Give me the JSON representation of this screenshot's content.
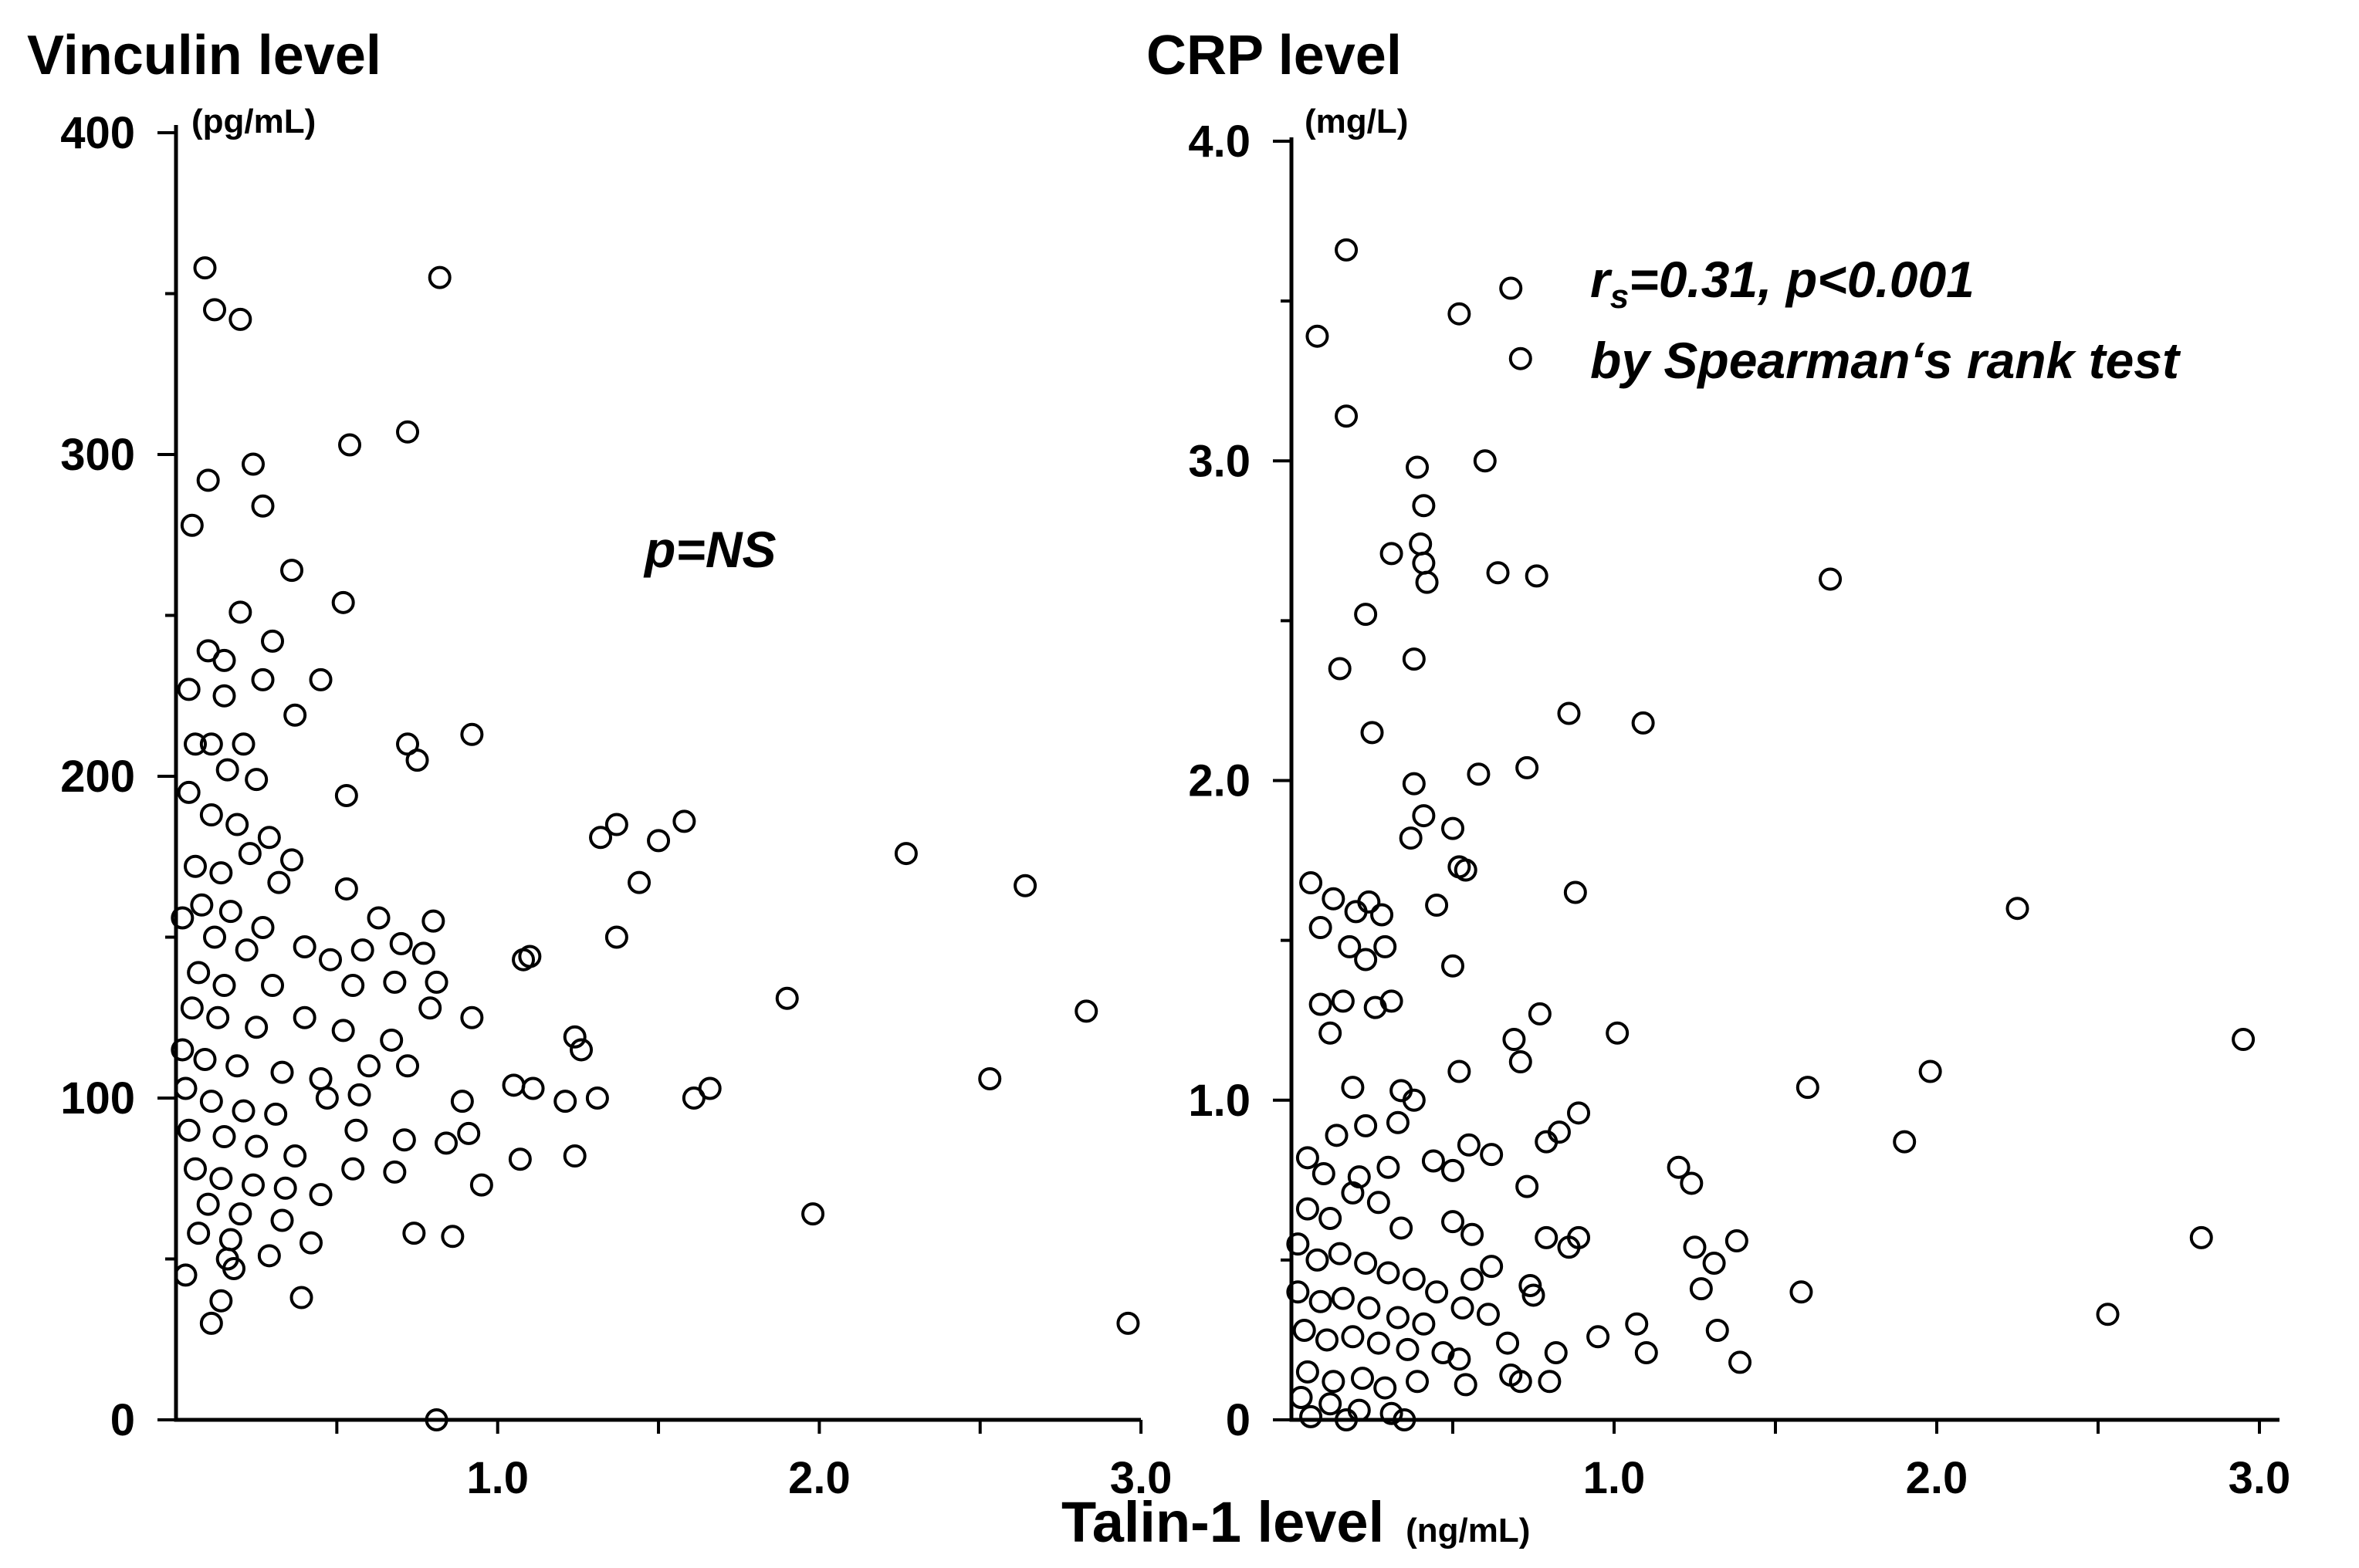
{
  "figure": {
    "xlabel": "Talin-1 level",
    "xlabel_unit": "(ng/mL)"
  },
  "chart_data": [
    {
      "type": "scatter",
      "title": "Vinculin level",
      "ylabel_unit": "(pg/mL)",
      "annotation_lines": [
        "p=NS"
      ],
      "xlim": [
        0,
        3.0
      ],
      "ylim": [
        0,
        400
      ],
      "xticks": [
        1.0,
        2.0,
        3.0
      ],
      "xtick_labels": [
        "1.0",
        "2.0",
        "3.0"
      ],
      "yticks": [
        0,
        100,
        200,
        300,
        400
      ],
      "ytick_labels": [
        "0",
        "100",
        "200",
        "300",
        "400"
      ],
      "points": [
        [
          0.09,
          358
        ],
        [
          0.12,
          345
        ],
        [
          0.2,
          342
        ],
        [
          0.82,
          355
        ],
        [
          0.1,
          292
        ],
        [
          0.24,
          297
        ],
        [
          0.27,
          284
        ],
        [
          0.05,
          278
        ],
        [
          0.54,
          303
        ],
        [
          0.72,
          307
        ],
        [
          0.36,
          264
        ],
        [
          0.52,
          254
        ],
        [
          0.2,
          251
        ],
        [
          0.3,
          242
        ],
        [
          0.1,
          239
        ],
        [
          0.15,
          236
        ],
        [
          0.04,
          227
        ],
        [
          0.15,
          225
        ],
        [
          0.27,
          230
        ],
        [
          0.45,
          230
        ],
        [
          0.37,
          219
        ],
        [
          0.72,
          210
        ],
        [
          0.75,
          205
        ],
        [
          0.92,
          213
        ],
        [
          0.06,
          210
        ],
        [
          0.11,
          210
        ],
        [
          0.21,
          210
        ],
        [
          0.16,
          202
        ],
        [
          0.25,
          199
        ],
        [
          0.53,
          194
        ],
        [
          0.04,
          195
        ],
        [
          0.11,
          188
        ],
        [
          0.19,
          185
        ],
        [
          0.29,
          181
        ],
        [
          0.23,
          176
        ],
        [
          0.36,
          174
        ],
        [
          0.06,
          172
        ],
        [
          0.14,
          170
        ],
        [
          0.32,
          167
        ],
        [
          0.53,
          165
        ],
        [
          0.08,
          160
        ],
        [
          0.17,
          158
        ],
        [
          0.27,
          153
        ],
        [
          0.4,
          147
        ],
        [
          0.63,
          156
        ],
        [
          0.8,
          155
        ],
        [
          0.02,
          156
        ],
        [
          0.12,
          150
        ],
        [
          0.22,
          146
        ],
        [
          0.48,
          143
        ],
        [
          0.58,
          146
        ],
        [
          0.7,
          148
        ],
        [
          0.77,
          145
        ],
        [
          0.07,
          139
        ],
        [
          0.15,
          135
        ],
        [
          0.3,
          135
        ],
        [
          0.55,
          135
        ],
        [
          0.68,
          136
        ],
        [
          0.81,
          136
        ],
        [
          0.05,
          128
        ],
        [
          0.13,
          125
        ],
        [
          0.25,
          122
        ],
        [
          0.4,
          125
        ],
        [
          0.52,
          121
        ],
        [
          0.67,
          118
        ],
        [
          0.79,
          128
        ],
        [
          0.92,
          125
        ],
        [
          0.02,
          115
        ],
        [
          0.09,
          112
        ],
        [
          0.19,
          110
        ],
        [
          0.33,
          108
        ],
        [
          0.45,
          106
        ],
        [
          0.6,
          110
        ],
        [
          0.72,
          110
        ],
        [
          0.03,
          103
        ],
        [
          0.11,
          99
        ],
        [
          0.21,
          96
        ],
        [
          0.31,
          95
        ],
        [
          0.47,
          100
        ],
        [
          0.57,
          101
        ],
        [
          0.89,
          99
        ],
        [
          0.04,
          90
        ],
        [
          0.15,
          88
        ],
        [
          0.25,
          85
        ],
        [
          0.37,
          82
        ],
        [
          0.56,
          90
        ],
        [
          0.71,
          87
        ],
        [
          0.84,
          86
        ],
        [
          0.91,
          89
        ],
        [
          0.06,
          78
        ],
        [
          0.14,
          75
        ],
        [
          0.24,
          73
        ],
        [
          0.34,
          72
        ],
        [
          0.45,
          70
        ],
        [
          0.55,
          78
        ],
        [
          0.68,
          77
        ],
        [
          0.95,
          73
        ],
        [
          0.1,
          67
        ],
        [
          0.2,
          64
        ],
        [
          0.33,
          62
        ],
        [
          0.07,
          58
        ],
        [
          0.17,
          56
        ],
        [
          0.42,
          55
        ],
        [
          0.74,
          58
        ],
        [
          0.86,
          57
        ],
        [
          0.16,
          50
        ],
        [
          0.29,
          51
        ],
        [
          0.03,
          45
        ],
        [
          0.18,
          47
        ],
        [
          0.14,
          37
        ],
        [
          0.39,
          38
        ],
        [
          0.11,
          30
        ],
        [
          1.05,
          104
        ],
        [
          1.11,
          103
        ],
        [
          1.07,
          81
        ],
        [
          1.21,
          99
        ],
        [
          1.24,
          82
        ],
        [
          1.24,
          119
        ],
        [
          1.26,
          115
        ],
        [
          1.31,
          100
        ],
        [
          1.08,
          143
        ],
        [
          1.1,
          144
        ],
        [
          1.32,
          181
        ],
        [
          1.37,
          185
        ],
        [
          1.37,
          150
        ],
        [
          1.44,
          167
        ],
        [
          1.5,
          180
        ],
        [
          1.58,
          186
        ],
        [
          1.61,
          100
        ],
        [
          1.66,
          103
        ],
        [
          1.9,
          131
        ],
        [
          1.98,
          64
        ],
        [
          2.27,
          176
        ],
        [
          2.53,
          106
        ],
        [
          2.64,
          166
        ],
        [
          2.83,
          127
        ],
        [
          2.96,
          30
        ],
        [
          0.81,
          0
        ]
      ]
    },
    {
      "type": "scatter",
      "title": "CRP level",
      "ylabel_unit": "(mg/L)",
      "annotation_lines": [
        "rs=0.31, p<0.001",
        "by Spearman‘s rank test"
      ],
      "xlim": [
        0,
        3.0
      ],
      "ylim": [
        0,
        4.0
      ],
      "xticks": [
        1.0,
        2.0,
        3.0
      ],
      "xtick_labels": [
        "1.0",
        "2.0",
        "3.0"
      ],
      "yticks": [
        0,
        1.0,
        2.0,
        3.0,
        4.0
      ],
      "ytick_labels": [
        "0",
        "1.0",
        "2.0",
        "3.0",
        "4.0"
      ],
      "points": [
        [
          0.17,
          3.66
        ],
        [
          0.08,
          3.39
        ],
        [
          0.17,
          3.14
        ],
        [
          0.68,
          3.54
        ],
        [
          0.52,
          3.46
        ],
        [
          0.71,
          3.32
        ],
        [
          0.39,
          2.98
        ],
        [
          0.6,
          3.0
        ],
        [
          0.41,
          2.86
        ],
        [
          0.4,
          2.74
        ],
        [
          0.41,
          2.68
        ],
        [
          0.42,
          2.62
        ],
        [
          0.31,
          2.71
        ],
        [
          0.64,
          2.65
        ],
        [
          0.76,
          2.64
        ],
        [
          1.67,
          2.63
        ],
        [
          0.23,
          2.52
        ],
        [
          0.15,
          2.35
        ],
        [
          0.38,
          2.38
        ],
        [
          0.86,
          2.21
        ],
        [
          1.09,
          2.18
        ],
        [
          0.25,
          2.15
        ],
        [
          0.73,
          2.04
        ],
        [
          0.58,
          2.02
        ],
        [
          0.38,
          1.99
        ],
        [
          0.41,
          1.89
        ],
        [
          0.37,
          1.82
        ],
        [
          0.5,
          1.85
        ],
        [
          0.52,
          1.73
        ],
        [
          0.54,
          1.72
        ],
        [
          0.45,
          1.61
        ],
        [
          0.88,
          1.65
        ],
        [
          0.06,
          1.68
        ],
        [
          0.13,
          1.63
        ],
        [
          0.2,
          1.59
        ],
        [
          0.24,
          1.62
        ],
        [
          0.28,
          1.58
        ],
        [
          0.09,
          1.54
        ],
        [
          0.18,
          1.48
        ],
        [
          0.23,
          1.44
        ],
        [
          0.29,
          1.48
        ],
        [
          0.5,
          1.42
        ],
        [
          0.16,
          1.31
        ],
        [
          0.26,
          1.29
        ],
        [
          0.31,
          1.31
        ],
        [
          0.09,
          1.3
        ],
        [
          0.12,
          1.21
        ],
        [
          0.77,
          1.27
        ],
        [
          0.69,
          1.19
        ],
        [
          1.01,
          1.21
        ],
        [
          0.71,
          1.12
        ],
        [
          0.52,
          1.09
        ],
        [
          0.19,
          1.04
        ],
        [
          0.34,
          1.03
        ],
        [
          0.38,
          1.0
        ],
        [
          0.23,
          0.92
        ],
        [
          0.33,
          0.93
        ],
        [
          0.14,
          0.89
        ],
        [
          0.89,
          0.96
        ],
        [
          0.83,
          0.9
        ],
        [
          1.6,
          1.04
        ],
        [
          1.98,
          1.09
        ],
        [
          2.25,
          1.6
        ],
        [
          2.95,
          1.19
        ],
        [
          1.9,
          0.87
        ],
        [
          0.05,
          0.82
        ],
        [
          0.1,
          0.77
        ],
        [
          0.21,
          0.76
        ],
        [
          0.3,
          0.79
        ],
        [
          0.44,
          0.81
        ],
        [
          0.5,
          0.78
        ],
        [
          0.55,
          0.86
        ],
        [
          0.62,
          0.83
        ],
        [
          0.79,
          0.87
        ],
        [
          0.73,
          0.73
        ],
        [
          0.05,
          0.66
        ],
        [
          0.12,
          0.63
        ],
        [
          0.19,
          0.71
        ],
        [
          0.27,
          0.68
        ],
        [
          0.34,
          0.6
        ],
        [
          0.5,
          0.62
        ],
        [
          0.56,
          0.58
        ],
        [
          0.79,
          0.57
        ],
        [
          0.86,
          0.54
        ],
        [
          0.89,
          0.57
        ],
        [
          0.74,
          0.42
        ],
        [
          0.75,
          0.39
        ],
        [
          0.02,
          0.55
        ],
        [
          0.08,
          0.5
        ],
        [
          0.15,
          0.52
        ],
        [
          0.23,
          0.49
        ],
        [
          0.3,
          0.46
        ],
        [
          0.38,
          0.44
        ],
        [
          0.45,
          0.4
        ],
        [
          0.56,
          0.44
        ],
        [
          0.62,
          0.48
        ],
        [
          0.02,
          0.4
        ],
        [
          0.09,
          0.37
        ],
        [
          0.16,
          0.38
        ],
        [
          0.24,
          0.35
        ],
        [
          0.33,
          0.32
        ],
        [
          0.41,
          0.3
        ],
        [
          0.53,
          0.35
        ],
        [
          0.61,
          0.33
        ],
        [
          0.04,
          0.28
        ],
        [
          0.11,
          0.25
        ],
        [
          0.19,
          0.26
        ],
        [
          0.27,
          0.24
        ],
        [
          0.36,
          0.22
        ],
        [
          0.47,
          0.21
        ],
        [
          0.52,
          0.19
        ],
        [
          0.67,
          0.24
        ],
        [
          0.82,
          0.21
        ],
        [
          0.05,
          0.15
        ],
        [
          0.13,
          0.12
        ],
        [
          0.22,
          0.13
        ],
        [
          0.29,
          0.1
        ],
        [
          0.39,
          0.12
        ],
        [
          0.54,
          0.11
        ],
        [
          0.68,
          0.14
        ],
        [
          0.71,
          0.12
        ],
        [
          0.8,
          0.12
        ],
        [
          0.03,
          0.07
        ],
        [
          0.12,
          0.05
        ],
        [
          0.21,
          0.03
        ],
        [
          0.31,
          0.02
        ],
        [
          0.06,
          0.01
        ],
        [
          0.17,
          0.0
        ],
        [
          0.35,
          0.0
        ],
        [
          1.2,
          0.79
        ],
        [
          1.24,
          0.74
        ],
        [
          1.25,
          0.54
        ],
        [
          1.31,
          0.49
        ],
        [
          1.27,
          0.41
        ],
        [
          1.38,
          0.56
        ],
        [
          1.32,
          0.28
        ],
        [
          1.39,
          0.18
        ],
        [
          1.1,
          0.21
        ],
        [
          1.07,
          0.3
        ],
        [
          0.95,
          0.26
        ],
        [
          1.58,
          0.4
        ],
        [
          2.53,
          0.33
        ],
        [
          2.82,
          0.57
        ]
      ]
    }
  ]
}
